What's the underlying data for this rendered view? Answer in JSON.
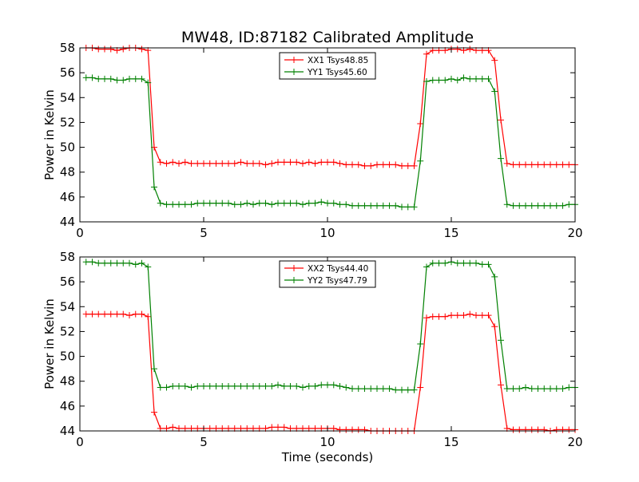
{
  "figure": {
    "title": "MW48, ID:87182 Calibrated Amplitude"
  },
  "chart_data": [
    {
      "type": "line",
      "title": "MW48, ID:87182 Calibrated Amplitude",
      "xlabel": "",
      "ylabel": "Power in Kelvin",
      "xlim": [
        0,
        20
      ],
      "ylim": [
        44,
        58
      ],
      "xticks": [
        0,
        5,
        10,
        15,
        20
      ],
      "yticks": [
        44,
        46,
        48,
        50,
        52,
        54,
        56,
        58
      ],
      "grid": false,
      "legend_position": "top-center",
      "x": [
        0.25,
        0.5,
        0.75,
        1.0,
        1.25,
        1.5,
        1.75,
        2.0,
        2.25,
        2.5,
        2.75,
        3.0,
        3.25,
        3.5,
        3.75,
        4.0,
        4.25,
        4.5,
        4.75,
        5.0,
        5.25,
        5.5,
        5.75,
        6.0,
        6.25,
        6.5,
        6.75,
        7.0,
        7.25,
        7.5,
        7.75,
        8.0,
        8.25,
        8.5,
        8.75,
        9.0,
        9.25,
        9.5,
        9.75,
        10.0,
        10.25,
        10.5,
        10.75,
        11.0,
        11.25,
        11.5,
        11.75,
        12.0,
        12.25,
        12.5,
        12.75,
        13.0,
        13.25,
        13.5,
        13.75,
        14.0,
        14.25,
        14.5,
        14.75,
        15.0,
        15.25,
        15.5,
        15.75,
        16.0,
        16.25,
        16.5,
        16.75,
        17.0,
        17.25,
        17.5,
        17.75,
        18.0,
        18.25,
        18.5,
        18.75,
        19.0,
        19.25,
        19.5,
        19.75,
        20.0
      ],
      "series": [
        {
          "name": "XX1 Tsys48.85",
          "color": "#ff0000",
          "values": [
            58.0,
            58.0,
            57.9,
            57.9,
            57.9,
            57.8,
            57.9,
            58.0,
            58.0,
            57.9,
            57.8,
            50.0,
            48.8,
            48.7,
            48.8,
            48.7,
            48.8,
            48.7,
            48.7,
            48.7,
            48.7,
            48.7,
            48.7,
            48.7,
            48.7,
            48.8,
            48.7,
            48.7,
            48.7,
            48.6,
            48.7,
            48.8,
            48.8,
            48.8,
            48.8,
            48.7,
            48.8,
            48.7,
            48.8,
            48.8,
            48.8,
            48.7,
            48.6,
            48.6,
            48.6,
            48.5,
            48.5,
            48.6,
            48.6,
            48.6,
            48.6,
            48.5,
            48.5,
            48.5,
            51.9,
            57.5,
            57.8,
            57.8,
            57.8,
            57.9,
            57.9,
            57.8,
            57.9,
            57.8,
            57.8,
            57.8,
            57.0,
            52.2,
            48.7,
            48.6,
            48.6,
            48.6,
            48.6,
            48.6,
            48.6,
            48.6,
            48.6,
            48.6,
            48.6,
            48.6
          ]
        },
        {
          "name": "YY1 Tsys45.60",
          "color": "#008000",
          "values": [
            55.6,
            55.6,
            55.5,
            55.5,
            55.5,
            55.4,
            55.4,
            55.5,
            55.5,
            55.5,
            55.2,
            46.8,
            45.5,
            45.4,
            45.4,
            45.4,
            45.4,
            45.4,
            45.5,
            45.5,
            45.5,
            45.5,
            45.5,
            45.5,
            45.4,
            45.4,
            45.5,
            45.4,
            45.5,
            45.5,
            45.4,
            45.5,
            45.5,
            45.5,
            45.5,
            45.4,
            45.5,
            45.5,
            45.6,
            45.5,
            45.5,
            45.4,
            45.4,
            45.3,
            45.3,
            45.3,
            45.3,
            45.3,
            45.3,
            45.3,
            45.3,
            45.2,
            45.2,
            45.2,
            48.9,
            55.3,
            55.4,
            55.4,
            55.4,
            55.5,
            55.4,
            55.6,
            55.5,
            55.5,
            55.5,
            55.5,
            54.5,
            49.1,
            45.4,
            45.3,
            45.3,
            45.3,
            45.3,
            45.3,
            45.3,
            45.3,
            45.3,
            45.3,
            45.4,
            45.4
          ]
        }
      ]
    },
    {
      "type": "line",
      "title": "",
      "xlabel": "Time (seconds)",
      "ylabel": "Power in Kelvin",
      "xlim": [
        0,
        20
      ],
      "ylim": [
        44,
        58
      ],
      "xticks": [
        0,
        5,
        10,
        15,
        20
      ],
      "yticks": [
        44,
        46,
        48,
        50,
        52,
        54,
        56,
        58
      ],
      "grid": false,
      "legend_position": "top-center",
      "x": [
        0.25,
        0.5,
        0.75,
        1.0,
        1.25,
        1.5,
        1.75,
        2.0,
        2.25,
        2.5,
        2.75,
        3.0,
        3.25,
        3.5,
        3.75,
        4.0,
        4.25,
        4.5,
        4.75,
        5.0,
        5.25,
        5.5,
        5.75,
        6.0,
        6.25,
        6.5,
        6.75,
        7.0,
        7.25,
        7.5,
        7.75,
        8.0,
        8.25,
        8.5,
        8.75,
        9.0,
        9.25,
        9.5,
        9.75,
        10.0,
        10.25,
        10.5,
        10.75,
        11.0,
        11.25,
        11.5,
        11.75,
        12.0,
        12.25,
        12.5,
        12.75,
        13.0,
        13.25,
        13.5,
        13.75,
        14.0,
        14.25,
        14.5,
        14.75,
        15.0,
        15.25,
        15.5,
        15.75,
        16.0,
        16.25,
        16.5,
        16.75,
        17.0,
        17.25,
        17.5,
        17.75,
        18.0,
        18.25,
        18.5,
        18.75,
        19.0,
        19.25,
        19.5,
        19.75,
        20.0
      ],
      "series": [
        {
          "name": "XX2 Tsys44.40",
          "color": "#ff0000",
          "values": [
            53.4,
            53.4,
            53.4,
            53.4,
            53.4,
            53.4,
            53.4,
            53.3,
            53.4,
            53.4,
            53.2,
            45.5,
            44.2,
            44.2,
            44.3,
            44.2,
            44.2,
            44.2,
            44.2,
            44.2,
            44.2,
            44.2,
            44.2,
            44.2,
            44.2,
            44.2,
            44.2,
            44.2,
            44.2,
            44.2,
            44.3,
            44.3,
            44.3,
            44.2,
            44.2,
            44.2,
            44.2,
            44.2,
            44.2,
            44.2,
            44.2,
            44.1,
            44.1,
            44.1,
            44.1,
            44.1,
            44.0,
            44.0,
            44.0,
            44.0,
            44.0,
            44.0,
            44.0,
            44.0,
            47.5,
            53.1,
            53.2,
            53.2,
            53.2,
            53.3,
            53.3,
            53.3,
            53.4,
            53.3,
            53.3,
            53.3,
            52.4,
            47.7,
            44.2,
            44.1,
            44.1,
            44.1,
            44.1,
            44.1,
            44.1,
            44.0,
            44.1,
            44.1,
            44.1,
            44.1
          ]
        },
        {
          "name": "YY2 Tsys47.79",
          "color": "#008000",
          "values": [
            57.6,
            57.6,
            57.5,
            57.5,
            57.5,
            57.5,
            57.5,
            57.5,
            57.4,
            57.5,
            57.2,
            49.0,
            47.5,
            47.5,
            47.6,
            47.6,
            47.6,
            47.5,
            47.6,
            47.6,
            47.6,
            47.6,
            47.6,
            47.6,
            47.6,
            47.6,
            47.6,
            47.6,
            47.6,
            47.6,
            47.6,
            47.7,
            47.6,
            47.6,
            47.6,
            47.5,
            47.6,
            47.6,
            47.7,
            47.7,
            47.7,
            47.6,
            47.5,
            47.4,
            47.4,
            47.4,
            47.4,
            47.4,
            47.4,
            47.4,
            47.3,
            47.3,
            47.3,
            47.3,
            51.0,
            57.2,
            57.5,
            57.5,
            57.5,
            57.6,
            57.5,
            57.5,
            57.5,
            57.5,
            57.4,
            57.4,
            56.4,
            51.3,
            47.4,
            47.4,
            47.4,
            47.5,
            47.4,
            47.4,
            47.4,
            47.4,
            47.4,
            47.4,
            47.5,
            47.5
          ]
        }
      ]
    }
  ]
}
